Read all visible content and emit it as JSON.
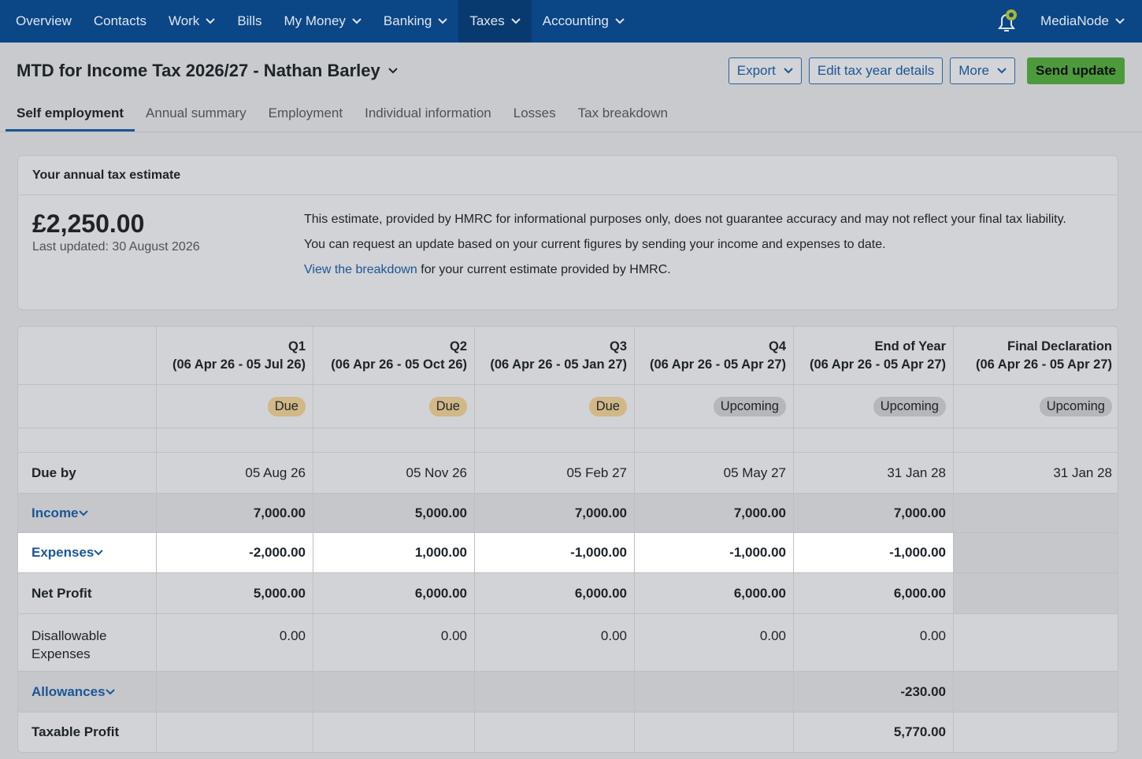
{
  "nav": {
    "items": [
      "Overview",
      "Contacts",
      "Work",
      "Bills",
      "My Money",
      "Banking",
      "Taxes",
      "Accounting"
    ],
    "user": "MediaNode"
  },
  "header": {
    "title": "MTD for Income Tax 2026/27 - Nathan Barley",
    "buttons": [
      "Export",
      "Edit tax year details",
      "More",
      "Send update"
    ]
  },
  "tabs": [
    "Self employment",
    "Annual summary",
    "Employment",
    "Individual information",
    "Losses",
    "Tax breakdown"
  ],
  "estimate": {
    "heading": "Your annual tax estimate",
    "amount": "£2,250.00",
    "updated": "Last updated: 30 August 2026",
    "paragraphs": [
      "This estimate, provided by HMRC for informational purposes only, does not guarantee accuracy and may not reflect your final tax liability.",
      "You can request an update based on your current figures by sending your income and expenses to date."
    ],
    "link": "View the breakdown",
    "link_suffix": "for your current estimate provided by HMRC."
  },
  "table": {
    "columns": [
      {
        "title": "Q1",
        "range": "(06 Apr 26 - 05 Jul 26)",
        "status": "Due"
      },
      {
        "title": "Q2",
        "range": "(06 Apr 26 - 05 Oct 26)",
        "status": "Due"
      },
      {
        "title": "Q3",
        "range": "(06 Apr 26 - 05 Jan 27)",
        "status": "Due"
      },
      {
        "title": "Q4",
        "range": "(06 Apr 26 - 05 Apr 27)",
        "status": "Upcoming"
      },
      {
        "title": "End of Year",
        "range": "(06 Apr 26 - 05 Apr 27)",
        "status": "Upcoming"
      },
      {
        "title": "Final Declaration",
        "range": "(06 Apr 26 - 05 Apr 27)",
        "status": "Upcoming"
      }
    ],
    "rows": [
      {
        "label": "Due by",
        "values": [
          "05 Aug 26",
          "05 Nov 26",
          "05 Feb 27",
          "05 May 27",
          "31 Jan 28",
          "31 Jan 28"
        ]
      },
      {
        "label": "Income",
        "values": [
          "7,000.00",
          "5,000.00",
          "7,000.00",
          "7,000.00",
          "7,000.00",
          null
        ]
      },
      {
        "label": "Expenses",
        "values": [
          "-2,000.00",
          "1,000.00",
          "-1,000.00",
          "-1,000.00",
          "-1,000.00",
          null
        ]
      },
      {
        "label": "Net Profit",
        "values": [
          "5,000.00",
          "6,000.00",
          "6,000.00",
          "6,000.00",
          "6,000.00",
          null
        ]
      },
      {
        "label": "Disallowable Expenses",
        "values": [
          "0.00",
          "0.00",
          "0.00",
          "0.00",
          "0.00",
          null
        ]
      },
      {
        "label": "Allowances",
        "values": [
          null,
          null,
          null,
          null,
          "-230.00",
          null
        ]
      },
      {
        "label": "Taxable Profit",
        "values": [
          null,
          null,
          null,
          null,
          "5,770.00",
          null
        ]
      }
    ]
  }
}
